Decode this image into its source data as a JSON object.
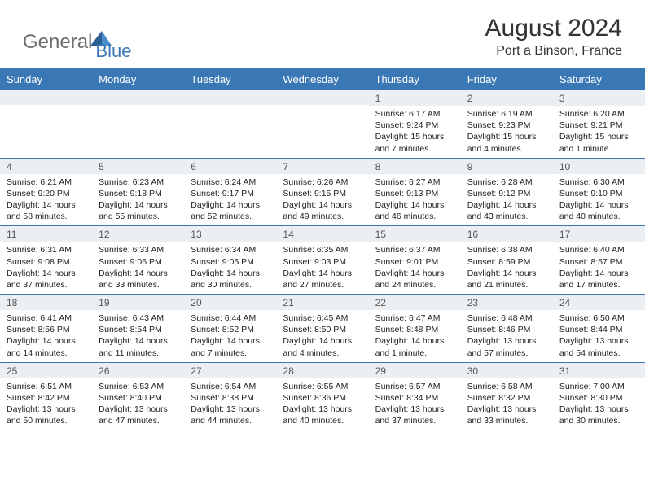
{
  "brand": {
    "part1": "General",
    "part2": "Blue"
  },
  "title": "August 2024",
  "location": "Port a Binson, France",
  "colors": {
    "header_bg": "#3a78b5",
    "header_fg": "#ffffff",
    "daynum_bg": "#eceff1",
    "rule": "#3a78b5",
    "text": "#222222",
    "brand_gray": "#6e6e6e",
    "brand_blue": "#3a78b5"
  },
  "day_names": [
    "Sunday",
    "Monday",
    "Tuesday",
    "Wednesday",
    "Thursday",
    "Friday",
    "Saturday"
  ],
  "weeks": [
    [
      {
        "n": "",
        "sr": "",
        "ss": "",
        "dl": ""
      },
      {
        "n": "",
        "sr": "",
        "ss": "",
        "dl": ""
      },
      {
        "n": "",
        "sr": "",
        "ss": "",
        "dl": ""
      },
      {
        "n": "",
        "sr": "",
        "ss": "",
        "dl": ""
      },
      {
        "n": "1",
        "sr": "Sunrise: 6:17 AM",
        "ss": "Sunset: 9:24 PM",
        "dl": "Daylight: 15 hours and 7 minutes."
      },
      {
        "n": "2",
        "sr": "Sunrise: 6:19 AM",
        "ss": "Sunset: 9:23 PM",
        "dl": "Daylight: 15 hours and 4 minutes."
      },
      {
        "n": "3",
        "sr": "Sunrise: 6:20 AM",
        "ss": "Sunset: 9:21 PM",
        "dl": "Daylight: 15 hours and 1 minute."
      }
    ],
    [
      {
        "n": "4",
        "sr": "Sunrise: 6:21 AM",
        "ss": "Sunset: 9:20 PM",
        "dl": "Daylight: 14 hours and 58 minutes."
      },
      {
        "n": "5",
        "sr": "Sunrise: 6:23 AM",
        "ss": "Sunset: 9:18 PM",
        "dl": "Daylight: 14 hours and 55 minutes."
      },
      {
        "n": "6",
        "sr": "Sunrise: 6:24 AM",
        "ss": "Sunset: 9:17 PM",
        "dl": "Daylight: 14 hours and 52 minutes."
      },
      {
        "n": "7",
        "sr": "Sunrise: 6:26 AM",
        "ss": "Sunset: 9:15 PM",
        "dl": "Daylight: 14 hours and 49 minutes."
      },
      {
        "n": "8",
        "sr": "Sunrise: 6:27 AM",
        "ss": "Sunset: 9:13 PM",
        "dl": "Daylight: 14 hours and 46 minutes."
      },
      {
        "n": "9",
        "sr": "Sunrise: 6:28 AM",
        "ss": "Sunset: 9:12 PM",
        "dl": "Daylight: 14 hours and 43 minutes."
      },
      {
        "n": "10",
        "sr": "Sunrise: 6:30 AM",
        "ss": "Sunset: 9:10 PM",
        "dl": "Daylight: 14 hours and 40 minutes."
      }
    ],
    [
      {
        "n": "11",
        "sr": "Sunrise: 6:31 AM",
        "ss": "Sunset: 9:08 PM",
        "dl": "Daylight: 14 hours and 37 minutes."
      },
      {
        "n": "12",
        "sr": "Sunrise: 6:33 AM",
        "ss": "Sunset: 9:06 PM",
        "dl": "Daylight: 14 hours and 33 minutes."
      },
      {
        "n": "13",
        "sr": "Sunrise: 6:34 AM",
        "ss": "Sunset: 9:05 PM",
        "dl": "Daylight: 14 hours and 30 minutes."
      },
      {
        "n": "14",
        "sr": "Sunrise: 6:35 AM",
        "ss": "Sunset: 9:03 PM",
        "dl": "Daylight: 14 hours and 27 minutes."
      },
      {
        "n": "15",
        "sr": "Sunrise: 6:37 AM",
        "ss": "Sunset: 9:01 PM",
        "dl": "Daylight: 14 hours and 24 minutes."
      },
      {
        "n": "16",
        "sr": "Sunrise: 6:38 AM",
        "ss": "Sunset: 8:59 PM",
        "dl": "Daylight: 14 hours and 21 minutes."
      },
      {
        "n": "17",
        "sr": "Sunrise: 6:40 AM",
        "ss": "Sunset: 8:57 PM",
        "dl": "Daylight: 14 hours and 17 minutes."
      }
    ],
    [
      {
        "n": "18",
        "sr": "Sunrise: 6:41 AM",
        "ss": "Sunset: 8:56 PM",
        "dl": "Daylight: 14 hours and 14 minutes."
      },
      {
        "n": "19",
        "sr": "Sunrise: 6:43 AM",
        "ss": "Sunset: 8:54 PM",
        "dl": "Daylight: 14 hours and 11 minutes."
      },
      {
        "n": "20",
        "sr": "Sunrise: 6:44 AM",
        "ss": "Sunset: 8:52 PM",
        "dl": "Daylight: 14 hours and 7 minutes."
      },
      {
        "n": "21",
        "sr": "Sunrise: 6:45 AM",
        "ss": "Sunset: 8:50 PM",
        "dl": "Daylight: 14 hours and 4 minutes."
      },
      {
        "n": "22",
        "sr": "Sunrise: 6:47 AM",
        "ss": "Sunset: 8:48 PM",
        "dl": "Daylight: 14 hours and 1 minute."
      },
      {
        "n": "23",
        "sr": "Sunrise: 6:48 AM",
        "ss": "Sunset: 8:46 PM",
        "dl": "Daylight: 13 hours and 57 minutes."
      },
      {
        "n": "24",
        "sr": "Sunrise: 6:50 AM",
        "ss": "Sunset: 8:44 PM",
        "dl": "Daylight: 13 hours and 54 minutes."
      }
    ],
    [
      {
        "n": "25",
        "sr": "Sunrise: 6:51 AM",
        "ss": "Sunset: 8:42 PM",
        "dl": "Daylight: 13 hours and 50 minutes."
      },
      {
        "n": "26",
        "sr": "Sunrise: 6:53 AM",
        "ss": "Sunset: 8:40 PM",
        "dl": "Daylight: 13 hours and 47 minutes."
      },
      {
        "n": "27",
        "sr": "Sunrise: 6:54 AM",
        "ss": "Sunset: 8:38 PM",
        "dl": "Daylight: 13 hours and 44 minutes."
      },
      {
        "n": "28",
        "sr": "Sunrise: 6:55 AM",
        "ss": "Sunset: 8:36 PM",
        "dl": "Daylight: 13 hours and 40 minutes."
      },
      {
        "n": "29",
        "sr": "Sunrise: 6:57 AM",
        "ss": "Sunset: 8:34 PM",
        "dl": "Daylight: 13 hours and 37 minutes."
      },
      {
        "n": "30",
        "sr": "Sunrise: 6:58 AM",
        "ss": "Sunset: 8:32 PM",
        "dl": "Daylight: 13 hours and 33 minutes."
      },
      {
        "n": "31",
        "sr": "Sunrise: 7:00 AM",
        "ss": "Sunset: 8:30 PM",
        "dl": "Daylight: 13 hours and 30 minutes."
      }
    ]
  ]
}
